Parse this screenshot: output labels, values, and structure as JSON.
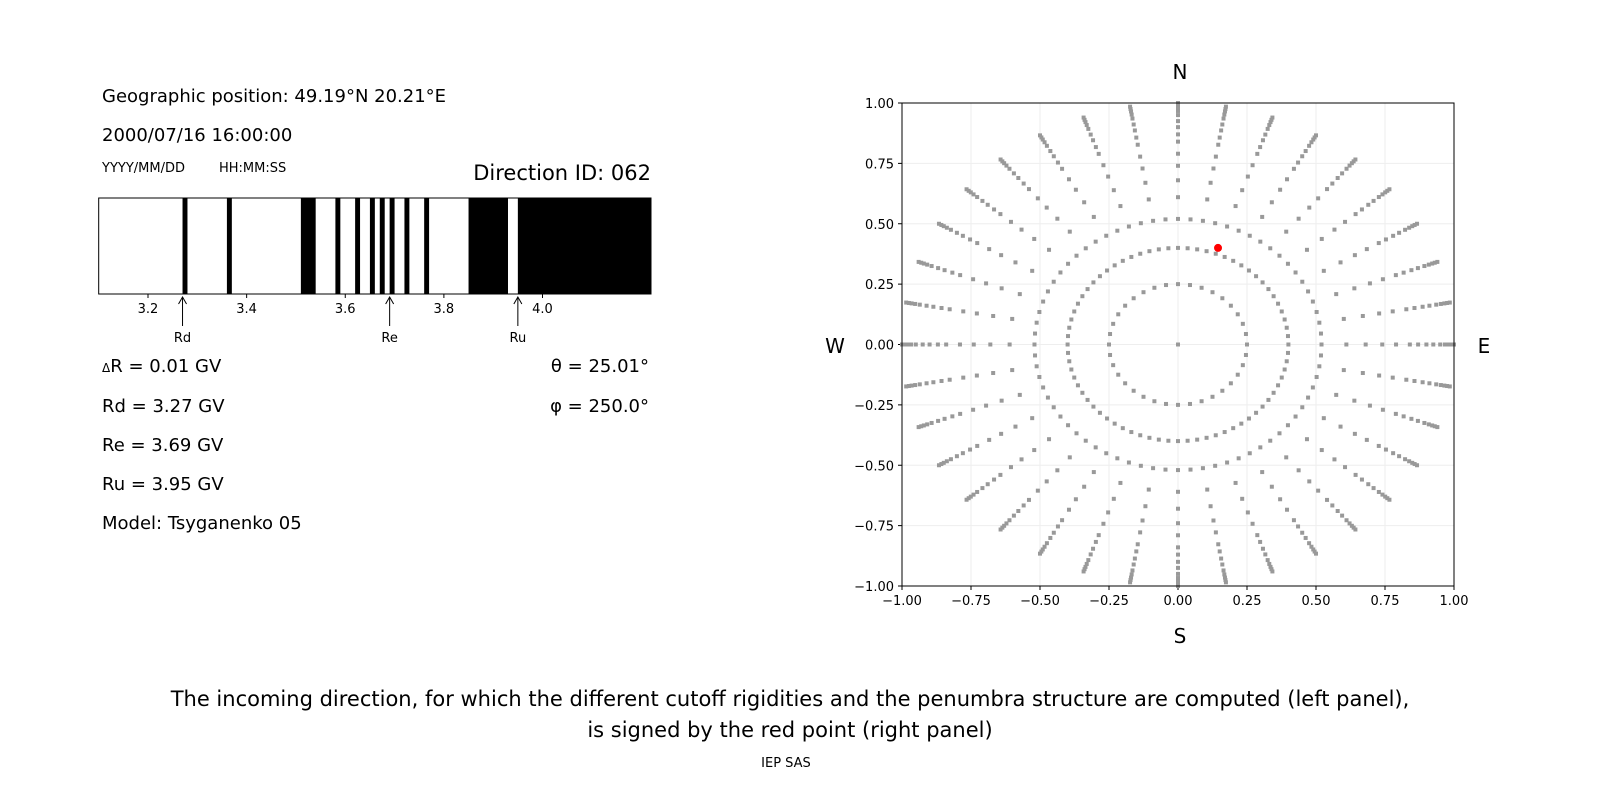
{
  "left": {
    "geo": "Geographic position: 49.19°N 20.21°E",
    "datetime": "2000/07/16 16:00:00",
    "date_fmt": "YYYY/MM/DD",
    "time_fmt": "HH:MM:SS",
    "direction": "Direction ID: 062",
    "dR": "R = 0.01 GV",
    "dR_symbol": "Δ",
    "rd": "Rd = 3.27 GV",
    "re": "Re = 3.69 GV",
    "ru": "Ru = 3.95 GV",
    "model": "Model: Tsyganenko 05",
    "theta": "θ = 25.01°",
    "phi": "φ = 250.0°"
  },
  "chart_data": [
    {
      "type": "penumbra-bar",
      "xlim": [
        3.1,
        4.22
      ],
      "xticks": [
        "3.2",
        "3.4",
        "3.6",
        "3.8",
        "4.0"
      ],
      "forbidden_bands": [
        [
          3.27,
          3.28
        ],
        [
          3.36,
          3.37
        ],
        [
          3.51,
          3.54
        ],
        [
          3.58,
          3.59
        ],
        [
          3.62,
          3.63
        ],
        [
          3.65,
          3.66
        ],
        [
          3.67,
          3.68
        ],
        [
          3.69,
          3.7
        ],
        [
          3.72,
          3.73
        ],
        [
          3.76,
          3.77
        ],
        [
          3.85,
          3.93
        ],
        [
          3.95,
          4.22
        ]
      ],
      "markers": [
        {
          "label": "Rd",
          "value": 3.27
        },
        {
          "label": "Re",
          "value": 3.69
        },
        {
          "label": "Ru",
          "value": 3.95
        }
      ]
    },
    {
      "type": "scatter",
      "xlim": [
        -1,
        1
      ],
      "ylim": [
        -1,
        1
      ],
      "grid": true,
      "xticks": [
        "−1.00",
        "−0.75",
        "−0.50",
        "−0.25",
        "0.00",
        "0.25",
        "0.50",
        "0.75",
        "1.00"
      ],
      "yticks": [
        "−1.00",
        "−0.75",
        "−0.50",
        "−0.25",
        "0.00",
        "0.25",
        "0.50",
        "0.75",
        "1.00"
      ],
      "compass": {
        "n": "N",
        "s": "S",
        "e": "E",
        "w": "W"
      },
      "grid_azimuth_step_deg": 10,
      "inner_ring_radius": 0.25,
      "spoke_radii": [
        0.4,
        0.52,
        0.61,
        0.68,
        0.74,
        0.79,
        0.84,
        0.87,
        0.9,
        0.925,
        0.95,
        0.967,
        0.98,
        0.99,
        1.0
      ],
      "point_color": "#999999",
      "selected": {
        "x": 0.145,
        "y": 0.4,
        "color": "#ff0000"
      }
    }
  ],
  "caption": {
    "line1": "The incoming direction, for which the different cutoff rigidities and the penumbra structure are computed (left panel),",
    "line2": "is signed by the red point (right panel)"
  },
  "footer": "IEP SAS"
}
